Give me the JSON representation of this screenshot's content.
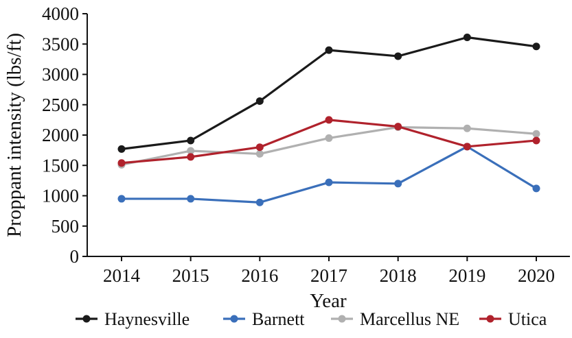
{
  "chart_data": {
    "type": "line",
    "xlabel": "Year",
    "ylabel": "Proppant intensity (lbs/ft)",
    "x": [
      "2014",
      "2015",
      "2016",
      "2017",
      "2018",
      "2019",
      "2020"
    ],
    "ylim": [
      0,
      4000
    ],
    "yticks": [
      "0",
      "500",
      "1000",
      "1500",
      "2000",
      "2500",
      "3000",
      "3500",
      "4000"
    ],
    "grid": false,
    "legend_position": "bottom",
    "series": [
      {
        "name": "Haynesville",
        "color": "#1a1a1a",
        "values": [
          1770,
          1910,
          2560,
          3400,
          3300,
          3610,
          3460
        ]
      },
      {
        "name": "Barnett",
        "color": "#3a6fba",
        "values": [
          950,
          950,
          890,
          1220,
          1200,
          1810,
          1120
        ]
      },
      {
        "name": "Marcellus NE",
        "color": "#b0b0b0",
        "values": [
          1510,
          1740,
          1690,
          1950,
          2130,
          2110,
          2020
        ]
      },
      {
        "name": "Utica",
        "color": "#b0222c",
        "values": [
          1540,
          1640,
          1800,
          2250,
          2140,
          1810,
          1910
        ]
      }
    ]
  }
}
